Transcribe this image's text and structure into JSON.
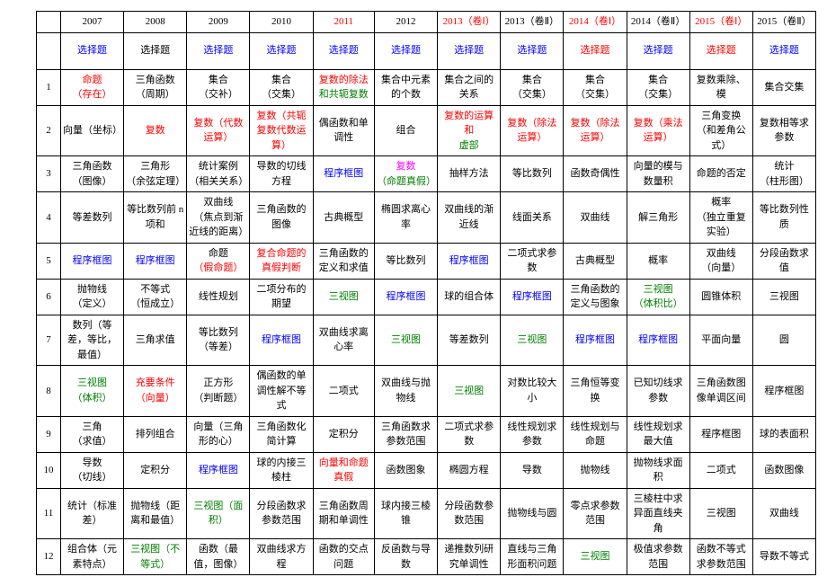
{
  "colors": {
    "black": "#000000",
    "blue": "#0000ff",
    "red": "#ff0000",
    "green": "#008000",
    "magenta": "#ff00ff"
  },
  "years": [
    {
      "t": "2007",
      "c": "black"
    },
    {
      "t": "2008",
      "c": "black"
    },
    {
      "t": "2009",
      "c": "black"
    },
    {
      "t": "2010",
      "c": "black"
    },
    {
      "t": "2011",
      "c": "red"
    },
    {
      "t": "2012",
      "c": "black"
    },
    {
      "t": "2013（卷Ⅰ）",
      "c": "red"
    },
    {
      "t": "2013（卷Ⅱ）",
      "c": "black"
    },
    {
      "t": "2014（卷Ⅰ）",
      "c": "red"
    },
    {
      "t": "2014（卷Ⅱ）",
      "c": "black"
    },
    {
      "t": "2015（卷Ⅰ）",
      "c": "red"
    },
    {
      "t": "2015（卷Ⅱ）",
      "c": "black"
    }
  ],
  "subhead": [
    {
      "t": "选择题",
      "c": "blue"
    },
    {
      "t": "选择题",
      "c": "black"
    },
    {
      "t": "选择题",
      "c": "blue"
    },
    {
      "t": "选择题",
      "c": "blue"
    },
    {
      "t": "选择题",
      "c": "blue"
    },
    {
      "t": "选择题",
      "c": "blue"
    },
    {
      "t": "选择题",
      "c": "blue"
    },
    {
      "t": "选择题",
      "c": "blue"
    },
    {
      "t": "选择题",
      "c": "red"
    },
    {
      "t": "选择题",
      "c": "blue"
    },
    {
      "t": "选择题",
      "c": "red"
    },
    {
      "t": "选择题",
      "c": "blue"
    }
  ],
  "rows": [
    {
      "n": "1",
      "c": [
        {
          "t": "命题\n（存在）",
          "c": "red"
        },
        {
          "t": "三角函数\n（周期）",
          "c": "black"
        },
        {
          "t": "集合\n（交补）",
          "c": "black"
        },
        {
          "t": "集合\n（交集）",
          "c": "black"
        },
        {
          "p": [
            {
              "t": "复数的除法",
              "c": "red"
            },
            {
              "t": "和共轭复数",
              "c": "green"
            }
          ]
        },
        {
          "t": "集合中元素的个数",
          "c": "black"
        },
        {
          "t": "集合之间的关系",
          "c": "black"
        },
        {
          "t": "集合\n（交集）",
          "c": "black"
        },
        {
          "t": "集合\n（交集）",
          "c": "black"
        },
        {
          "t": "集合\n（交集）",
          "c": "black"
        },
        {
          "t": "复数乘除、模",
          "c": "black"
        },
        {
          "t": "集合交集",
          "c": "black"
        }
      ]
    },
    {
      "n": "2",
      "c": [
        {
          "t": "向量（坐标）",
          "c": "black"
        },
        {
          "t": "复数",
          "c": "red"
        },
        {
          "p": [
            {
              "t": "复数（代数运算）",
              "c": "red"
            }
          ]
        },
        {
          "p": [
            {
              "t": "复数（共轭复数代数运算）",
              "c": "red"
            }
          ]
        },
        {
          "t": "偶函数和单调性",
          "c": "black"
        },
        {
          "t": "组合",
          "c": "black"
        },
        {
          "p": [
            {
              "t": "复数的运算和",
              "c": "red"
            },
            {
              "t": "虚部",
              "c": "green"
            }
          ]
        },
        {
          "t": "复数（除法运算）",
          "c": "red"
        },
        {
          "t": "复数（除法运算）",
          "c": "red"
        },
        {
          "t": "复数（乘法运算）",
          "c": "red"
        },
        {
          "t": "三角变换\n（和差角公式）",
          "c": "black"
        },
        {
          "t": "复数相等求参数",
          "c": "black"
        }
      ]
    },
    {
      "n": "3",
      "c": [
        {
          "t": "三角函数\n（图像）",
          "c": "black"
        },
        {
          "t": "三角形\n（余弦定理）",
          "c": "black"
        },
        {
          "t": "统计案例\n（相关关系）",
          "c": "black"
        },
        {
          "t": "导数的切线方程",
          "c": "black"
        },
        {
          "t": "程序框图",
          "c": "blue"
        },
        {
          "p": [
            {
              "t": "复数",
              "c": "magenta"
            },
            {
              "t": "（命题真假）",
              "c": "green"
            }
          ]
        },
        {
          "t": "抽样方法",
          "c": "black"
        },
        {
          "t": "等比数列",
          "c": "black"
        },
        {
          "t": "函数奇偶性",
          "c": "black"
        },
        {
          "t": "向量的模与数量积",
          "c": "black"
        },
        {
          "t": "命题的否定",
          "c": "black"
        },
        {
          "t": "统计\n（柱形图）",
          "c": "black"
        }
      ]
    },
    {
      "n": "4",
      "c": [
        {
          "t": "等差数列",
          "c": "black"
        },
        {
          "t": "等比数列前 n 项和",
          "c": "black"
        },
        {
          "t": "双曲线\n（焦点到渐近线的距离）",
          "c": "black"
        },
        {
          "t": "三角函数的图像",
          "c": "black"
        },
        {
          "t": "古典概型",
          "c": "black"
        },
        {
          "t": "椭圆求离心率",
          "c": "black"
        },
        {
          "t": "双曲线的渐近线",
          "c": "black"
        },
        {
          "t": "线面关系",
          "c": "black"
        },
        {
          "t": "双曲线",
          "c": "black"
        },
        {
          "t": "解三角形",
          "c": "black"
        },
        {
          "t": "概率\n（独立重复实验）",
          "c": "black"
        },
        {
          "t": "等比数列性质",
          "c": "black"
        }
      ]
    },
    {
      "n": "5",
      "c": [
        {
          "t": "程序框图",
          "c": "blue"
        },
        {
          "t": "程序框图",
          "c": "blue"
        },
        {
          "p": [
            {
              "t": "命题",
              "c": "black"
            },
            {
              "t": "（假命题）",
              "c": "red"
            }
          ]
        },
        {
          "p": [
            {
              "t": "复合命题的真假判断",
              "c": "red"
            }
          ]
        },
        {
          "t": "三角函数的定义和求值",
          "c": "black"
        },
        {
          "t": "等比数列",
          "c": "black"
        },
        {
          "t": "程序框图",
          "c": "blue"
        },
        {
          "t": "二项式求参数",
          "c": "black"
        },
        {
          "t": "古典概型",
          "c": "black"
        },
        {
          "t": "概率",
          "c": "black"
        },
        {
          "t": "双曲线\n（向量）",
          "c": "black"
        },
        {
          "t": "分段函数求值",
          "c": "black"
        }
      ]
    },
    {
      "n": "6",
      "c": [
        {
          "t": "抛物线\n（定义）",
          "c": "black"
        },
        {
          "t": "不等式\n（恒成立）",
          "c": "black"
        },
        {
          "t": "线性规划",
          "c": "black"
        },
        {
          "t": "二项分布的期望",
          "c": "black"
        },
        {
          "t": "三视图",
          "c": "green"
        },
        {
          "t": "程序框图",
          "c": "blue"
        },
        {
          "t": "球的组合体",
          "c": "black"
        },
        {
          "t": "程序框图",
          "c": "blue"
        },
        {
          "t": "三角函数的定义与图象",
          "c": "black"
        },
        {
          "p": [
            {
              "t": "三视图",
              "c": "green"
            },
            {
              "t": "（体积比）",
              "c": "green"
            }
          ]
        },
        {
          "t": "圆锥体积",
          "c": "black"
        },
        {
          "t": "三视图",
          "c": "black"
        }
      ]
    },
    {
      "n": "7",
      "c": [
        {
          "t": "数列（等差，等比，最值）",
          "c": "black"
        },
        {
          "t": "三角求值",
          "c": "black"
        },
        {
          "t": "等比数列\n（等差）",
          "c": "black"
        },
        {
          "t": "程序框图",
          "c": "blue"
        },
        {
          "t": "双曲线求离心率",
          "c": "black"
        },
        {
          "t": "三视图",
          "c": "green"
        },
        {
          "t": "等差数列",
          "c": "black"
        },
        {
          "t": "三视图",
          "c": "green"
        },
        {
          "t": "程序框图",
          "c": "blue"
        },
        {
          "t": "程序框图",
          "c": "blue"
        },
        {
          "t": "平面向量",
          "c": "black"
        },
        {
          "t": "圆",
          "c": "black"
        }
      ]
    },
    {
      "n": "8",
      "c": [
        {
          "p": [
            {
              "t": "三视图",
              "c": "green"
            },
            {
              "t": "（体积）",
              "c": "green"
            }
          ]
        },
        {
          "p": [
            {
              "t": "充要条件",
              "c": "red"
            },
            {
              "t": "（向量）",
              "c": "red"
            }
          ]
        },
        {
          "t": "正方形\n（判断题）",
          "c": "black"
        },
        {
          "t": "偶函数的单调性解不等式",
          "c": "black"
        },
        {
          "t": "二项式",
          "c": "black"
        },
        {
          "t": "双曲线与抛物线",
          "c": "black"
        },
        {
          "t": "三视图",
          "c": "green"
        },
        {
          "t": "对数比较大小",
          "c": "black"
        },
        {
          "t": "三角恒等变换",
          "c": "black"
        },
        {
          "t": "已知切线求参数",
          "c": "black"
        },
        {
          "t": "三角函数图像单调区间",
          "c": "black"
        },
        {
          "t": "程序框图",
          "c": "black"
        }
      ]
    },
    {
      "n": "9",
      "c": [
        {
          "t": "三角\n（求值）",
          "c": "black"
        },
        {
          "t": "排列组合",
          "c": "black"
        },
        {
          "t": "向量（三角形的心）",
          "c": "black"
        },
        {
          "t": "三角函数化简计算",
          "c": "black"
        },
        {
          "t": "定积分",
          "c": "black"
        },
        {
          "t": "三角函数求参数范围",
          "c": "black"
        },
        {
          "t": "二项式求参数",
          "c": "black"
        },
        {
          "t": "线性规划求参数",
          "c": "black"
        },
        {
          "t": "线性规划与命题",
          "c": "black"
        },
        {
          "t": "线性规划求最大值",
          "c": "black"
        },
        {
          "t": "程序框图",
          "c": "black"
        },
        {
          "t": "球的表面积",
          "c": "black"
        }
      ]
    },
    {
      "n": "10",
      "c": [
        {
          "t": "导数\n（切线）",
          "c": "black"
        },
        {
          "t": "定积分",
          "c": "black"
        },
        {
          "t": "程序框图",
          "c": "blue"
        },
        {
          "t": "球的内接三棱柱",
          "c": "black"
        },
        {
          "p": [
            {
              "t": "向量和命题真假",
              "c": "red"
            }
          ]
        },
        {
          "t": "函数图象",
          "c": "black"
        },
        {
          "t": "椭圆方程",
          "c": "black"
        },
        {
          "t": "导数",
          "c": "black"
        },
        {
          "t": "抛物线",
          "c": "black"
        },
        {
          "t": "抛物线求面积",
          "c": "black"
        },
        {
          "t": "二项式",
          "c": "black"
        },
        {
          "t": "函数图像",
          "c": "black"
        }
      ]
    },
    {
      "n": "11",
      "c": [
        {
          "t": "统计（标准差）",
          "c": "black"
        },
        {
          "t": "抛物线（距离和最值）",
          "c": "black"
        },
        {
          "t": "三视图（面积）",
          "c": "green"
        },
        {
          "t": "分段函数求参数范围",
          "c": "black"
        },
        {
          "t": "三角函数周期和单调性",
          "c": "black"
        },
        {
          "t": "球内接三棱锥",
          "c": "black"
        },
        {
          "t": "分段函数参数范围",
          "c": "black"
        },
        {
          "t": "抛物线与圆",
          "c": "black"
        },
        {
          "t": "零点求参数范围",
          "c": "black"
        },
        {
          "t": "三棱柱中求异面直线夹角",
          "c": "black"
        },
        {
          "t": "三视图",
          "c": "black"
        },
        {
          "t": "双曲线",
          "c": "black"
        }
      ]
    },
    {
      "n": "12",
      "c": [
        {
          "t": "组合体（元素特点）",
          "c": "black"
        },
        {
          "t": "三视图（不等式）",
          "c": "green"
        },
        {
          "t": "函数（最值，图像）",
          "c": "black"
        },
        {
          "t": "双曲线求方程",
          "c": "black"
        },
        {
          "t": "函数的交点问题",
          "c": "black"
        },
        {
          "t": "反函数与导数",
          "c": "black"
        },
        {
          "t": "递推数列研究单调性",
          "c": "black"
        },
        {
          "t": "直线与三角形面积问题",
          "c": "black"
        },
        {
          "t": "三视图",
          "c": "green"
        },
        {
          "t": "极值求参数范围",
          "c": "black"
        },
        {
          "t": "函数不等式求参数范围",
          "c": "black"
        },
        {
          "t": "导数不等式",
          "c": "black"
        }
      ]
    }
  ]
}
